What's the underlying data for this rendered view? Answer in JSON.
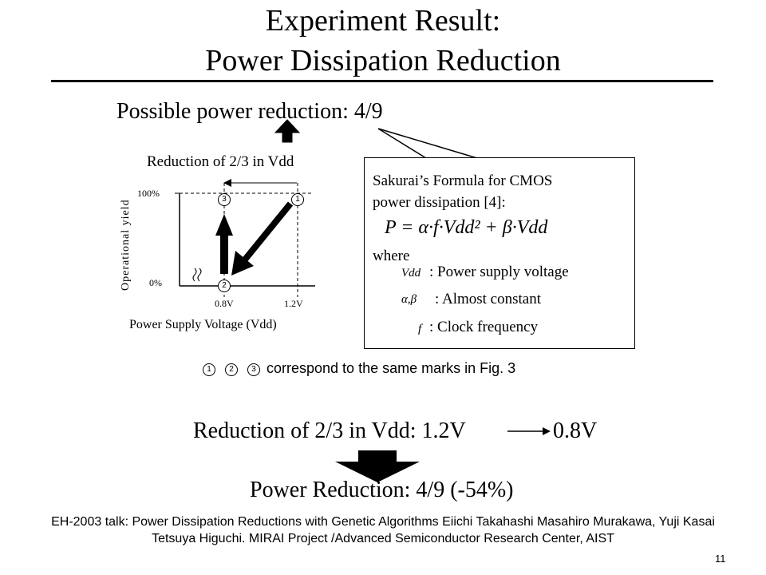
{
  "title": {
    "line1": "Experiment Result:",
    "line2": "Power Dissipation Reduction"
  },
  "headline": "Possible power reduction: 4/9",
  "figure": {
    "caption_top": "Reduction of 2/3 in Vdd",
    "ylabel": "Operational yield",
    "y_ticks": [
      "100%",
      "0%"
    ],
    "x_ticks": [
      "0.8V",
      "1.2V"
    ],
    "xlabel": "Power Supply Voltage (Vdd)",
    "markers": [
      "1",
      "2",
      "3"
    ]
  },
  "formula_box": {
    "line1": "Sakurai’s Formula for CMOS",
    "line2": "power dissipation [4]:",
    "formula": "P = α·f·Vdd² + β·Vdd",
    "where": "where",
    "defs": [
      {
        "symbol": "Vdd",
        "text": ": Power supply voltage"
      },
      {
        "symbol": "α,β",
        "text": ": Almost constant"
      },
      {
        "symbol": "f",
        "text": ": Clock frequency"
      }
    ]
  },
  "marks_note": {
    "markers": [
      "1",
      "2",
      "3"
    ],
    "text": "correspond to the same marks in Fig. 3"
  },
  "reduction_line": {
    "left": "Reduction of 2/3 in Vdd: 1.2V",
    "right": "0.8V"
  },
  "power_reduction": "Power Reduction: 4/9 (-54%)",
  "footer": {
    "line1": "EH-2003 talk: Power Dissipation Reductions with Genetic Algorithms Eiichi Takahashi  Masahiro Murakawa, Yuji Kasai",
    "line2": "Tetsuya Higuchi. MIRAI Project  /Advanced Semiconductor Research Center, AIST"
  },
  "page_number": "11"
}
